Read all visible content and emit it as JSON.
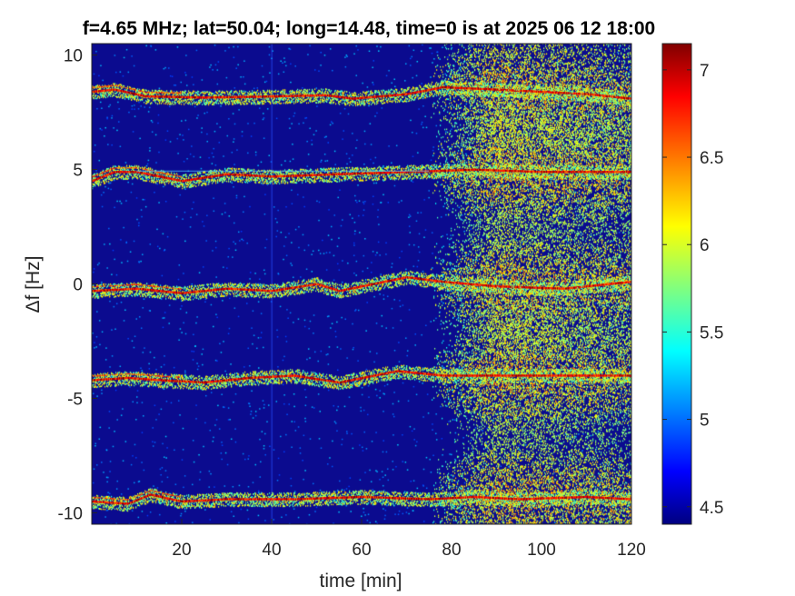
{
  "chart_data": {
    "type": "heatmap",
    "title": "f=4.65 MHz;  lat=50.04; long=14.48, time=0 is at 2025 06 12 18:00",
    "xlabel": "time [min]",
    "ylabel": "Δf [Hz]",
    "xlim": [
      0,
      120
    ],
    "ylim": [
      -10.5,
      10.5
    ],
    "xticks": [
      20,
      40,
      60,
      80,
      100,
      120
    ],
    "yticks": [
      10,
      5,
      0,
      -5,
      -10
    ],
    "colorbar": {
      "colormap": "jet",
      "clim": [
        4.4,
        7.15
      ],
      "ticks": [
        4.5,
        5,
        5.5,
        6,
        6.5,
        7
      ]
    },
    "background_color": "#0b0b8f",
    "traces": [
      {
        "center": 8.3,
        "points": [
          [
            0,
            8.4
          ],
          [
            5,
            8.5
          ],
          [
            12,
            8.2
          ],
          [
            25,
            8.15
          ],
          [
            40,
            8.2
          ],
          [
            52,
            8.25
          ],
          [
            58,
            8.1
          ],
          [
            70,
            8.3
          ],
          [
            78,
            8.6
          ],
          [
            90,
            8.5
          ],
          [
            100,
            8.4
          ],
          [
            110,
            8.3
          ],
          [
            120,
            8.1
          ]
        ]
      },
      {
        "center": 4.8,
        "points": [
          [
            0,
            4.5
          ],
          [
            5,
            4.9
          ],
          [
            10,
            4.9
          ],
          [
            15,
            4.7
          ],
          [
            20,
            4.5
          ],
          [
            30,
            4.8
          ],
          [
            40,
            4.7
          ],
          [
            55,
            4.8
          ],
          [
            70,
            4.9
          ],
          [
            85,
            5.0
          ],
          [
            100,
            4.9
          ],
          [
            110,
            4.9
          ],
          [
            120,
            4.9
          ]
        ]
      },
      {
        "center": -0.3,
        "points": [
          [
            0,
            -0.3
          ],
          [
            10,
            -0.2
          ],
          [
            20,
            -0.4
          ],
          [
            30,
            -0.2
          ],
          [
            40,
            -0.3
          ],
          [
            50,
            0.0
          ],
          [
            55,
            -0.3
          ],
          [
            70,
            0.3
          ],
          [
            78,
            0.1
          ],
          [
            90,
            -0.1
          ],
          [
            105,
            -0.2
          ],
          [
            120,
            0.1
          ]
        ]
      },
      {
        "center": -4.1,
        "points": [
          [
            0,
            -4.2
          ],
          [
            8,
            -4.1
          ],
          [
            15,
            -4.2
          ],
          [
            25,
            -4.3
          ],
          [
            35,
            -4.1
          ],
          [
            45,
            -4.0
          ],
          [
            55,
            -4.3
          ],
          [
            68,
            -3.8
          ],
          [
            78,
            -4.0
          ],
          [
            90,
            -4.0
          ],
          [
            105,
            -4.0
          ],
          [
            120,
            -4.0
          ]
        ]
      },
      {
        "center": -9.5,
        "points": [
          [
            0,
            -9.5
          ],
          [
            8,
            -9.6
          ],
          [
            13,
            -9.2
          ],
          [
            20,
            -9.5
          ],
          [
            30,
            -9.4
          ],
          [
            45,
            -9.4
          ],
          [
            60,
            -9.3
          ],
          [
            75,
            -9.4
          ],
          [
            85,
            -9.3
          ],
          [
            95,
            -9.4
          ],
          [
            110,
            -9.3
          ],
          [
            120,
            -9.4
          ]
        ]
      }
    ],
    "spread_region": {
      "time_start": 75,
      "time_peak": 90,
      "time_end": 120
    }
  }
}
